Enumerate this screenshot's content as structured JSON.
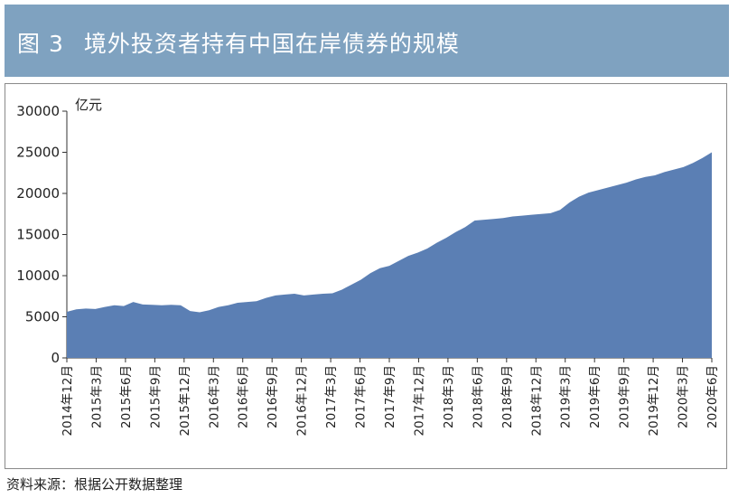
{
  "header": {
    "figure_number": "图 3",
    "title": "境外投资者持有中国在岸债券的规模"
  },
  "source": "资料来源：根据公开数据整理",
  "colors": {
    "header_bg": "#7fa2c0",
    "area_fill": "#5b7fb4",
    "axis": "#333333"
  },
  "chart_data": {
    "type": "area",
    "title": "境外投资者持有中国在岸债券的规模",
    "ylabel": "亿元",
    "xlabel": "",
    "ylim": [
      0,
      30000
    ],
    "yticks": [
      0,
      5000,
      10000,
      15000,
      20000,
      25000,
      30000
    ],
    "grid": false,
    "legend": "none",
    "x_tick_labels": [
      "2014年12月",
      "2015年3月",
      "2015年6月",
      "2015年9月",
      "2015年12月",
      "2016年3月",
      "2016年6月",
      "2016年9月",
      "2016年12月",
      "2017年3月",
      "2017年6月",
      "2017年9月",
      "2017年12月",
      "2018年3月",
      "2018年6月",
      "2018年9月",
      "2018年12月",
      "2019年3月",
      "2019年6月",
      "2019年9月",
      "2019年12月",
      "2020年3月",
      "2020年6月"
    ],
    "series": [
      {
        "name": "",
        "values": [
          5600,
          5900,
          6000,
          5950,
          6200,
          6400,
          6300,
          6800,
          6500,
          6450,
          6400,
          6450,
          6400,
          5700,
          5550,
          5800,
          6200,
          6400,
          6700,
          6800,
          6900,
          7300,
          7600,
          7700,
          7800,
          7600,
          7700,
          7800,
          7850,
          8300,
          8900,
          9500,
          10300,
          10900,
          11200,
          11800,
          12400,
          12800,
          13300,
          14000,
          14600,
          15300,
          15900,
          16700,
          16800,
          16900,
          17000,
          17200,
          17300,
          17400,
          17500,
          17600,
          18000,
          18900,
          19600,
          20100,
          20400,
          20700,
          21000,
          21300,
          21700,
          22000,
          22200,
          22600,
          22900,
          23200,
          23700,
          24300,
          25000
        ]
      }
    ]
  }
}
